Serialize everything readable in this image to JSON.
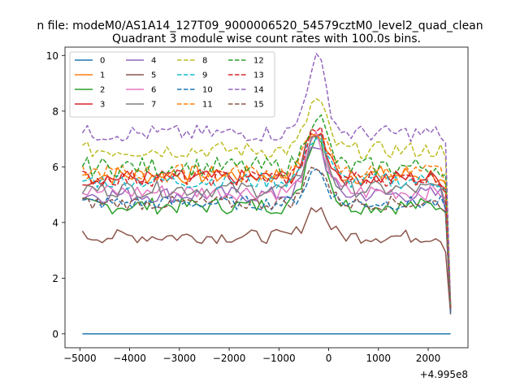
{
  "chart_data": {
    "type": "line",
    "suptitle": "n file: modeM0/AS1A14_127T09_9000006520_54579cztM0_level2_quad_clean",
    "title": "Quadrant 3 module wise count rates with 100.0s bins.",
    "xlabel": "",
    "ylabel": "",
    "x_offset_label": "+4.995e8",
    "xlim": [
      -5300,
      2800
    ],
    "ylim": [
      -0.5,
      10.3
    ],
    "x_ticks": [
      -5000,
      -4000,
      -3000,
      -2000,
      -1000,
      0,
      1000,
      2000
    ],
    "x_tick_labels": [
      "−5000",
      "−4000",
      "−3000",
      "−2000",
      "−1000",
      "0",
      "1000",
      "2000"
    ],
    "y_ticks": [
      0,
      2,
      4,
      6,
      8,
      10
    ],
    "y_tick_labels": [
      "0",
      "2",
      "4",
      "6",
      "8",
      "10"
    ],
    "x_start": -4950,
    "x_step": 100,
    "x_end": 2450,
    "legend_position": "top-left",
    "legend_columns": 4,
    "series": [
      {
        "name": "0",
        "color": "#1f77b4",
        "dash": false,
        "base": 0.0,
        "noise": 0.0,
        "bump": 0.0,
        "amp": 0.0
      },
      {
        "name": "1",
        "color": "#ff7f0e",
        "dash": false,
        "base": 5.7,
        "noise": 0.35,
        "bump": 1.6,
        "amp": 0.9
      },
      {
        "name": "2",
        "color": "#2ca02c",
        "dash": false,
        "base": 4.6,
        "noise": 0.3,
        "bump": 2.6,
        "amp": 0.9
      },
      {
        "name": "3",
        "color": "#d62728",
        "dash": false,
        "base": 5.6,
        "noise": 0.3,
        "bump": 1.7,
        "amp": 1.0
      },
      {
        "name": "4",
        "color": "#9467bd",
        "dash": false,
        "base": 5.0,
        "noise": 0.3,
        "bump": 1.8,
        "amp": 0.8
      },
      {
        "name": "5",
        "color": "#8c564b",
        "dash": false,
        "base": 3.5,
        "noise": 0.25,
        "bump": 1.1,
        "amp": 0.7
      },
      {
        "name": "6",
        "color": "#e377c2",
        "dash": false,
        "base": 5.1,
        "noise": 0.3,
        "bump": 1.9,
        "amp": 0.8
      },
      {
        "name": "7",
        "color": "#7f7f7f",
        "dash": false,
        "base": 5.2,
        "noise": 0.3,
        "bump": 2.0,
        "amp": 0.8
      },
      {
        "name": "8",
        "color": "#bcbd22",
        "dash": true,
        "base": 6.6,
        "noise": 0.3,
        "bump": 1.8,
        "amp": 1.0
      },
      {
        "name": "9",
        "color": "#17becf",
        "dash": true,
        "base": 5.5,
        "noise": 0.3,
        "bump": 1.7,
        "amp": 0.8
      },
      {
        "name": "10",
        "color": "#1f77b4",
        "dash": true,
        "base": 4.7,
        "noise": 0.25,
        "bump": 1.2,
        "amp": 0.7
      },
      {
        "name": "11",
        "color": "#ff7f0e",
        "dash": true,
        "base": 5.8,
        "noise": 0.3,
        "bump": 1.6,
        "amp": 0.9
      },
      {
        "name": "12",
        "color": "#2ca02c",
        "dash": true,
        "base": 6.0,
        "noise": 0.35,
        "bump": 1.9,
        "amp": 0.9
      },
      {
        "name": "13",
        "color": "#d62728",
        "dash": true,
        "base": 5.6,
        "noise": 0.3,
        "bump": 1.8,
        "amp": 0.9
      },
      {
        "name": "14",
        "color": "#9467bd",
        "dash": true,
        "base": 7.2,
        "noise": 0.3,
        "bump": 2.7,
        "amp": 1.0
      },
      {
        "name": "15",
        "color": "#8c564b",
        "dash": true,
        "base": 4.7,
        "noise": 0.25,
        "bump": 1.4,
        "amp": 0.8
      }
    ]
  }
}
